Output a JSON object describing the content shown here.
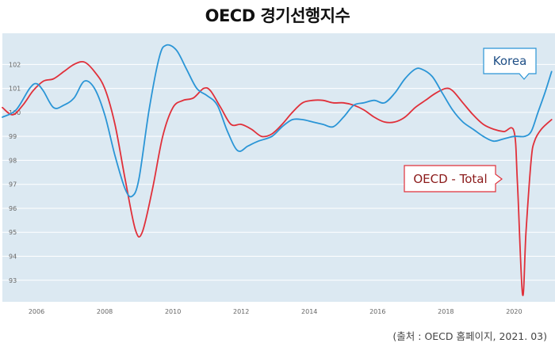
{
  "title": "OECD 경기선행지수",
  "source": "(출처 : OECD 홈페이지, 2021. 03)",
  "colors": {
    "korea": "#2a95d6",
    "oecd": "#e0303a",
    "plot_bg": "#dce9f2",
    "grid": "#ffffff"
  },
  "chart_data": {
    "type": "line",
    "title": "OECD 경기선행지수",
    "xlabel": "",
    "ylabel": "",
    "xlim": [
      2005,
      2021.2
    ],
    "ylim": [
      92.1,
      103.3
    ],
    "x_ticks": [
      2006,
      2008,
      2010,
      2012,
      2014,
      2016,
      2018,
      2020
    ],
    "y_ticks": [
      93,
      94,
      95,
      96,
      97,
      98,
      99,
      100,
      101,
      102
    ],
    "grid": true,
    "series": [
      {
        "name": "Korea",
        "color": "#2a95d6",
        "x": [
          2005.0,
          2005.4,
          2005.8,
          2006.0,
          2006.2,
          2006.5,
          2006.8,
          2007.1,
          2007.4,
          2007.7,
          2008.0,
          2008.3,
          2008.6,
          2008.8,
          2009.0,
          2009.3,
          2009.6,
          2009.8,
          2010.1,
          2010.4,
          2010.7,
          2011.0,
          2011.3,
          2011.6,
          2011.9,
          2012.2,
          2012.5,
          2012.9,
          2013.2,
          2013.5,
          2013.8,
          2014.1,
          2014.4,
          2014.7,
          2015.0,
          2015.3,
          2015.6,
          2015.9,
          2016.2,
          2016.5,
          2016.8,
          2017.1,
          2017.3,
          2017.6,
          2017.9,
          2018.2,
          2018.5,
          2018.8,
          2019.1,
          2019.4,
          2019.7,
          2020.0,
          2020.3,
          2020.5,
          2020.7,
          2020.9,
          2021.1
        ],
        "y": [
          99.8,
          100.1,
          101.0,
          101.2,
          100.9,
          100.2,
          100.3,
          100.6,
          101.3,
          101.0,
          99.9,
          98.2,
          96.8,
          96.5,
          97.2,
          100.1,
          102.3,
          102.8,
          102.6,
          101.8,
          101.0,
          100.7,
          100.3,
          99.2,
          98.4,
          98.6,
          98.8,
          99.0,
          99.4,
          99.7,
          99.7,
          99.6,
          99.5,
          99.4,
          99.8,
          100.3,
          100.4,
          100.5,
          100.4,
          100.8,
          101.4,
          101.8,
          101.8,
          101.5,
          100.8,
          100.1,
          99.6,
          99.3,
          99.0,
          98.8,
          98.9,
          99.0,
          99.0,
          99.2,
          100.0,
          100.8,
          101.7
        ]
      },
      {
        "name": "OECD - Total",
        "color": "#e0303a",
        "x": [
          2005.0,
          2005.3,
          2005.6,
          2005.9,
          2006.2,
          2006.5,
          2006.8,
          2007.1,
          2007.4,
          2007.7,
          2008.0,
          2008.3,
          2008.6,
          2008.9,
          2009.1,
          2009.4,
          2009.7,
          2010.0,
          2010.3,
          2010.6,
          2010.9,
          2011.1,
          2011.4,
          2011.7,
          2012.0,
          2012.3,
          2012.6,
          2012.9,
          2013.2,
          2013.5,
          2013.8,
          2014.1,
          2014.4,
          2014.7,
          2015.0,
          2015.3,
          2015.6,
          2015.9,
          2016.2,
          2016.5,
          2016.8,
          2017.1,
          2017.4,
          2017.7,
          2018.0,
          2018.2,
          2018.5,
          2018.8,
          2019.1,
          2019.4,
          2019.7,
          2020.0,
          2020.1,
          2020.25,
          2020.35,
          2020.5,
          2020.6,
          2020.8,
          2021.1
        ],
        "y": [
          100.2,
          99.9,
          100.3,
          100.9,
          101.3,
          101.4,
          101.7,
          102.0,
          102.1,
          101.7,
          101.0,
          99.5,
          97.2,
          95.1,
          95.0,
          96.8,
          99.0,
          100.2,
          100.5,
          100.6,
          101.0,
          100.9,
          100.2,
          99.5,
          99.5,
          99.3,
          99.0,
          99.1,
          99.5,
          100.0,
          100.4,
          100.5,
          100.5,
          100.4,
          100.4,
          100.3,
          100.1,
          99.8,
          99.6,
          99.6,
          99.8,
          100.2,
          100.5,
          100.8,
          101.0,
          100.9,
          100.4,
          99.9,
          99.5,
          99.3,
          99.2,
          99.2,
          97.0,
          92.4,
          95.0,
          98.0,
          98.8,
          99.3,
          99.7
        ]
      }
    ],
    "annotations": [
      {
        "text": "Korea",
        "series": "Korea"
      },
      {
        "text": "OECD - Total",
        "series": "OECD - Total"
      }
    ]
  }
}
